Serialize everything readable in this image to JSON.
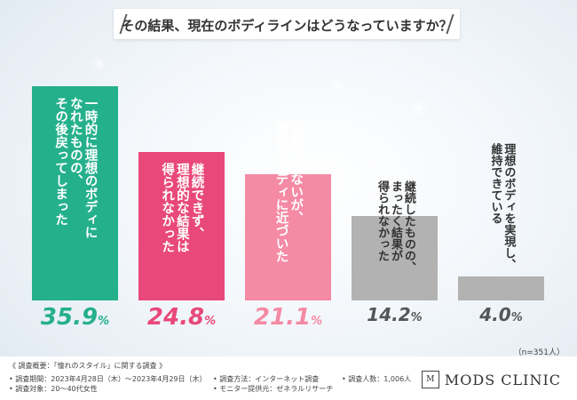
{
  "title": "その結果、現在のボディラインはどうなっていますか？",
  "chart_data": {
    "type": "bar",
    "categories": [
      "一時的に理想のボディになれたものの、その後戻ってしまった",
      "継続できず、理想的な結果は得られなかった",
      "完璧ではないが、理想のボディに近づいた",
      "継続したものの、まったく結果が得られなかった",
      "理想のボディを実現し、維持できている"
    ],
    "values": [
      35.9,
      24.8,
      21.1,
      14.2,
      4.0
    ],
    "value_texts": [
      "35.9",
      "24.8",
      "21.1",
      "14.2",
      "4.0"
    ],
    "unit": "%",
    "ylim": [
      0,
      36
    ],
    "colors": [
      "#25b08c",
      "#e8497a",
      "#f48aa4",
      "#b2b2b2",
      "#b2b2b2"
    ],
    "label_colors": [
      "#ffffff",
      "#ffffff",
      "#ffffff",
      "#333333",
      "#333333"
    ],
    "value_colors": [
      "#25b08c",
      "#e8497a",
      "#f48aa4",
      "#555555",
      "#555555"
    ],
    "bar_labels": [
      [
        "一時的に理想のボディに",
        "なれたものの、",
        "その後戻ってしまった"
      ],
      [
        "継続できず、",
        "理想的な結果は",
        "得られなかった"
      ],
      [
        "完璧ではないが、",
        "理想のボディに近づいた"
      ],
      [
        "継続したものの、",
        "まったく結果が",
        "得られなかった"
      ],
      [
        "理想のボディを実現し、",
        "維持できている"
      ]
    ]
  },
  "n_label": "（n=351人）",
  "footer": {
    "summary": "《 調査概要：「憧れのスタイル」に関する調査 》",
    "period": "• 調査期間：2023年4月28日（木）～2023年4月29日（木）",
    "target": "• 調査対象：20～40代女性",
    "method": "• 調査方法：インターネット調査",
    "provider": "• モニター提供元：ゼネラルリサーチ",
    "count": "• 調査人数：1,006人"
  },
  "logo": {
    "mark": "M",
    "text": "MODS CLINIC"
  }
}
